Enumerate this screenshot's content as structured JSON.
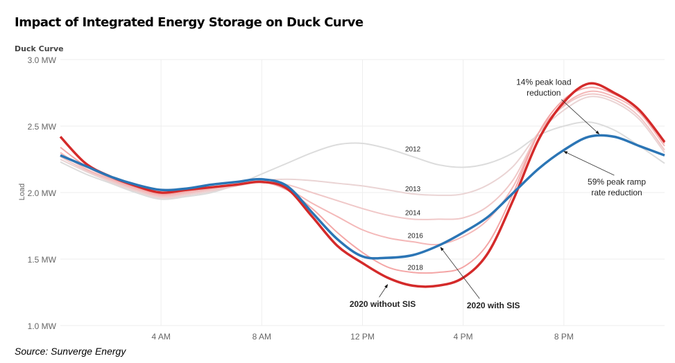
{
  "title": "Impact of Integrated Energy Storage on Duck Curve",
  "source": "Source: Sunverge Energy",
  "chart_data": {
    "type": "line",
    "subtitle": "Duck Curve",
    "ylabel": "Load",
    "xlabel": "",
    "ylim": [
      1.0,
      3.0
    ],
    "xlim": [
      0,
      24
    ],
    "grid": true,
    "yticks": [
      {
        "v": 3.0,
        "label": "3.0 MW"
      },
      {
        "v": 2.5,
        "label": "2.5 MW"
      },
      {
        "v": 2.0,
        "label": "2.0 MW"
      },
      {
        "v": 1.5,
        "label": "1.5 MW"
      },
      {
        "v": 1.0,
        "label": "1.0 MW"
      }
    ],
    "xticks": [
      {
        "v": 4,
        "label": "4 AM"
      },
      {
        "v": 8,
        "label": "8 AM"
      },
      {
        "v": 12,
        "label": "12 PM"
      },
      {
        "v": 16,
        "label": "4 PM"
      },
      {
        "v": 20,
        "label": "8 PM"
      }
    ],
    "x": [
      0,
      1,
      2,
      3,
      4,
      5,
      6,
      7,
      8,
      9,
      10,
      11,
      12,
      13,
      14,
      15,
      16,
      17,
      18,
      19,
      20,
      21,
      22,
      23,
      24
    ],
    "series": [
      {
        "name": "2012",
        "color": "#dcdcdc",
        "values": [
          2.23,
          2.14,
          2.07,
          2.0,
          1.95,
          1.97,
          2.0,
          2.06,
          2.14,
          2.22,
          2.3,
          2.36,
          2.37,
          2.33,
          2.27,
          2.21,
          2.19,
          2.22,
          2.3,
          2.43,
          2.5,
          2.53,
          2.47,
          2.35,
          2.22
        ]
      },
      {
        "name": "2013",
        "color": "#ead4d4",
        "values": [
          2.25,
          2.16,
          2.08,
          2.01,
          1.96,
          1.98,
          2.01,
          2.05,
          2.09,
          2.1,
          2.09,
          2.07,
          2.05,
          2.02,
          1.99,
          1.98,
          1.99,
          2.06,
          2.2,
          2.45,
          2.62,
          2.72,
          2.68,
          2.55,
          2.3
        ]
      },
      {
        "name": "2014",
        "color": "#f0c8c8",
        "values": [
          2.27,
          2.17,
          2.09,
          2.02,
          1.97,
          1.99,
          2.02,
          2.05,
          2.08,
          2.06,
          2.0,
          1.94,
          1.88,
          1.83,
          1.8,
          1.8,
          1.81,
          1.9,
          2.1,
          2.45,
          2.65,
          2.74,
          2.7,
          2.57,
          2.32
        ]
      },
      {
        "name": "2016",
        "color": "#f4b8b8",
        "values": [
          2.3,
          2.18,
          2.1,
          2.03,
          1.98,
          2.0,
          2.03,
          2.06,
          2.08,
          2.03,
          1.92,
          1.82,
          1.72,
          1.66,
          1.63,
          1.61,
          1.67,
          1.8,
          2.05,
          2.45,
          2.66,
          2.76,
          2.72,
          2.6,
          2.35
        ]
      },
      {
        "name": "2018",
        "color": "#f4a6a6",
        "values": [
          2.34,
          2.2,
          2.11,
          2.04,
          1.99,
          2.01,
          2.04,
          2.06,
          2.08,
          2.02,
          1.88,
          1.7,
          1.55,
          1.44,
          1.4,
          1.4,
          1.44,
          1.62,
          2.0,
          2.45,
          2.7,
          2.79,
          2.74,
          2.62,
          2.37
        ]
      },
      {
        "name": "2020 without SIS",
        "color": "#d42a2a",
        "values": [
          2.42,
          2.22,
          2.12,
          2.05,
          2.0,
          2.02,
          2.04,
          2.06,
          2.08,
          2.03,
          1.82,
          1.6,
          1.47,
          1.36,
          1.3,
          1.3,
          1.36,
          1.55,
          1.95,
          2.4,
          2.68,
          2.82,
          2.75,
          2.62,
          2.38
        ]
      },
      {
        "name": "2020 with SIS",
        "color": "#2b75b5",
        "values": [
          2.28,
          2.2,
          2.12,
          2.06,
          2.02,
          2.03,
          2.06,
          2.08,
          2.1,
          2.05,
          1.85,
          1.65,
          1.52,
          1.51,
          1.53,
          1.6,
          1.7,
          1.82,
          2.0,
          2.18,
          2.32,
          2.42,
          2.42,
          2.35,
          2.28
        ]
      }
    ],
    "annotations": [
      {
        "text": "2012",
        "x": 14,
        "y": 2.31
      },
      {
        "text": "2013",
        "x": 14,
        "y": 2.01
      },
      {
        "text": "2014",
        "x": 14,
        "y": 1.83
      },
      {
        "text": "2016",
        "x": 14.1,
        "y": 1.66
      },
      {
        "text": "2018",
        "x": 14.1,
        "y": 1.42
      },
      {
        "text": "2020 without SIS",
        "x": 12.8,
        "y": 1.14,
        "bold": true,
        "arrow_to": [
          13,
          1.33
        ]
      },
      {
        "text": "2020 with SIS",
        "x": 17.2,
        "y": 1.13,
        "bold": true,
        "arrow_to": [
          15.1,
          1.61
        ]
      },
      {
        "text": "14% peak load",
        "x": 19.2,
        "y": 2.81
      },
      {
        "text": "reduction",
        "x": 19.2,
        "y": 2.73
      },
      {
        "text": "59% peak ramp",
        "x": 22.1,
        "y": 2.06
      },
      {
        "text": "rate reduction",
        "x": 22.1,
        "y": 1.98
      }
    ]
  }
}
